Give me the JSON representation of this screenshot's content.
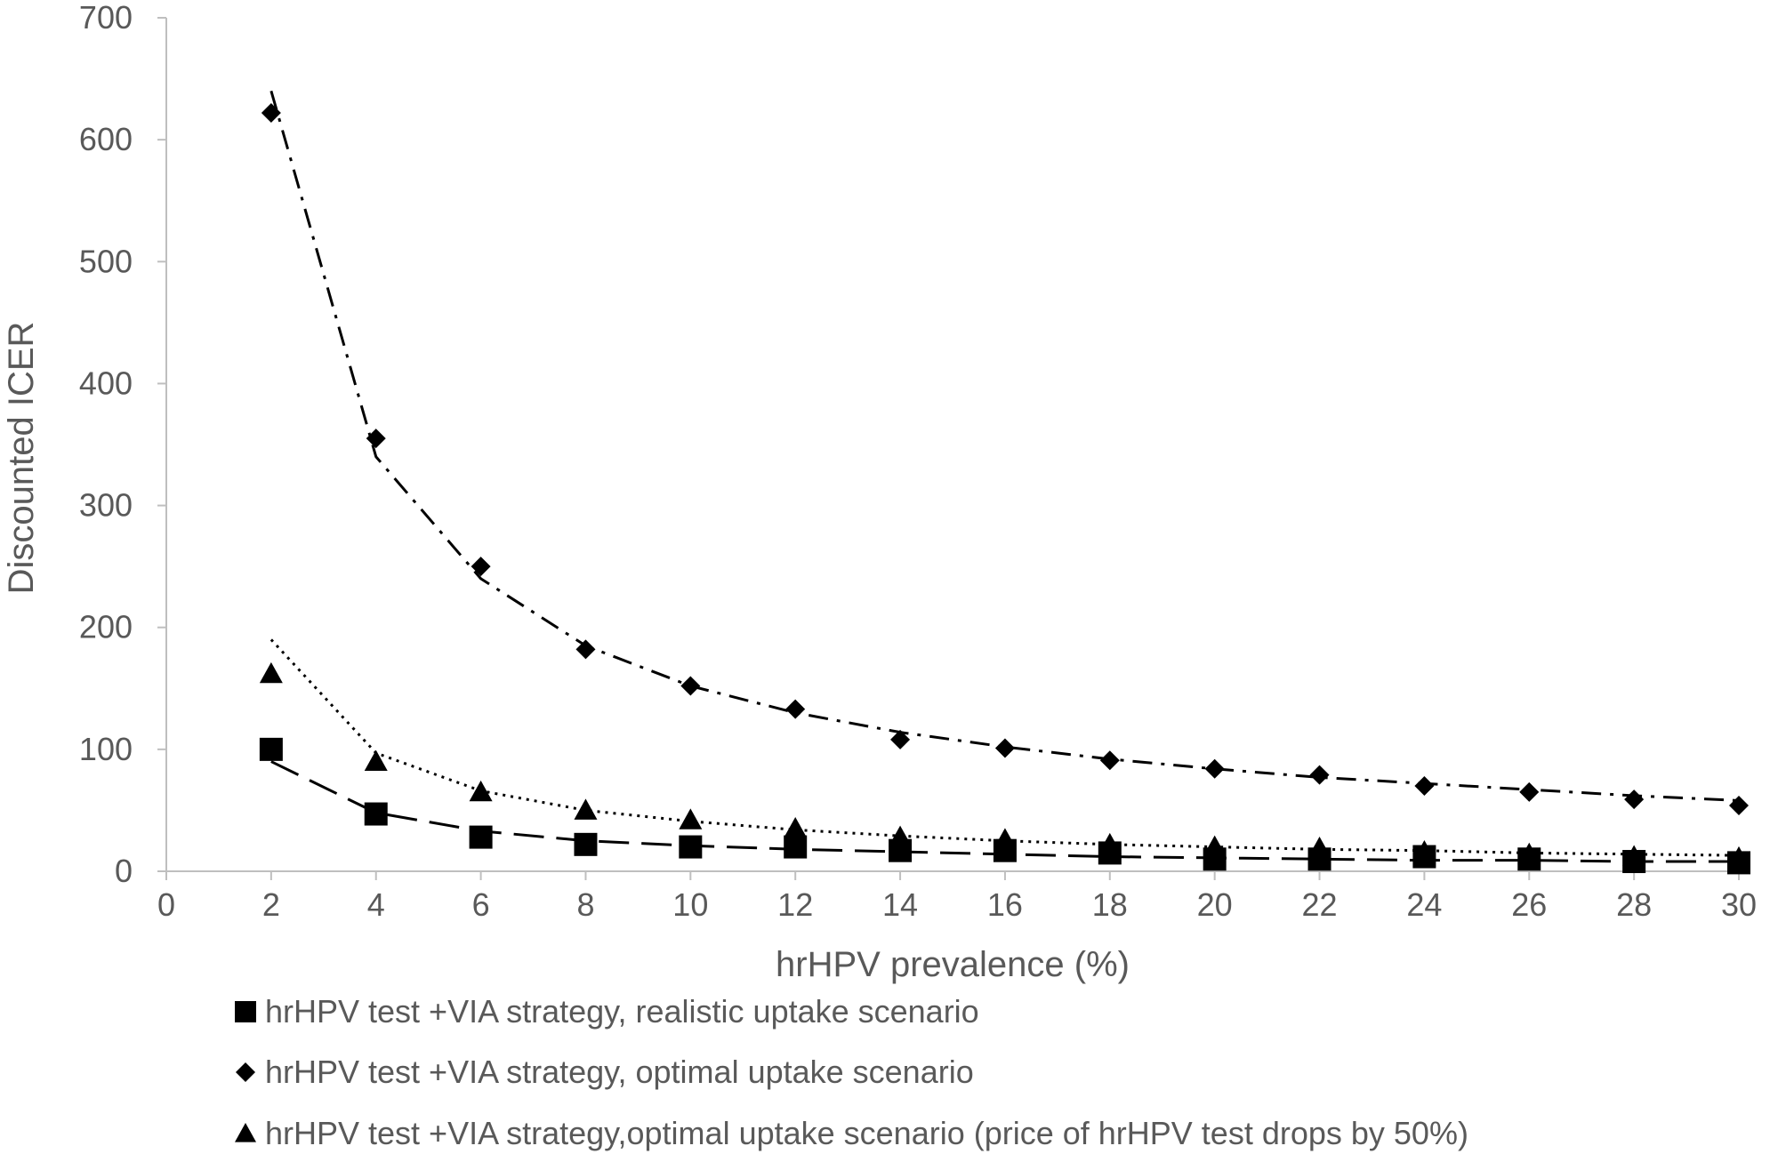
{
  "chart_data": {
    "type": "scatter",
    "xlabel": "hrHPV prevalence (%)",
    "ylabel": "Discounted ICER",
    "xlim": [
      0,
      30
    ],
    "ylim": [
      0,
      700
    ],
    "x_ticks": [
      "0",
      "2",
      "4",
      "6",
      "8",
      "10",
      "12",
      "14",
      "16",
      "18",
      "20",
      "22",
      "24",
      "26",
      "28",
      "30"
    ],
    "y_ticks": [
      "0",
      "100",
      "200",
      "300",
      "400",
      "500",
      "600",
      "700"
    ],
    "grid": false,
    "legend_position": "bottom-left",
    "series": [
      {
        "name": "hrHPV test +VIA strategy, realistic uptake scenario",
        "marker": "square",
        "trendline": "power",
        "line_style": "long-dash",
        "color": "#000000",
        "x": [
          2,
          4,
          6,
          8,
          10,
          12,
          14,
          16,
          18,
          20,
          22,
          24,
          26,
          28,
          30
        ],
        "y": [
          100,
          47,
          28,
          22,
          20,
          20,
          17,
          17,
          15,
          10,
          10,
          12,
          10,
          8,
          7
        ],
        "trend": [
          90,
          48,
          33,
          25,
          21,
          18,
          16,
          14,
          12,
          11,
          10,
          9,
          9,
          8,
          8
        ]
      },
      {
        "name": "hrHPV test +VIA strategy, optimal uptake scenario",
        "marker": "diamond",
        "trendline": "power",
        "line_style": "dash-dot",
        "color": "#000000",
        "x": [
          2,
          4,
          6,
          8,
          10,
          12,
          14,
          16,
          18,
          20,
          22,
          24,
          26,
          28,
          30
        ],
        "y": [
          622,
          355,
          250,
          182,
          152,
          133,
          108,
          101,
          91,
          84,
          79,
          70,
          65,
          59,
          54
        ],
        "trend": [
          640,
          340,
          240,
          185,
          152,
          130,
          114,
          102,
          92,
          84,
          77,
          72,
          67,
          62,
          58
        ]
      },
      {
        "name": "hrHPV test +VIA strategy,optimal uptake scenario (price of hrHPV test drops by 50%)",
        "marker": "triangle",
        "trendline": "power",
        "line_style": "dotted",
        "color": "#000000",
        "x": [
          2,
          4,
          6,
          8,
          10,
          12,
          14,
          16,
          18,
          20,
          22,
          24,
          26,
          28,
          30
        ],
        "y": [
          162,
          90,
          65,
          50,
          42,
          35,
          28,
          26,
          22,
          20,
          19,
          16,
          14,
          12,
          11
        ],
        "trend": [
          190,
          97,
          66,
          50,
          41,
          34,
          29,
          25,
          22,
          20,
          18,
          17,
          15,
          14,
          13
        ]
      }
    ]
  }
}
